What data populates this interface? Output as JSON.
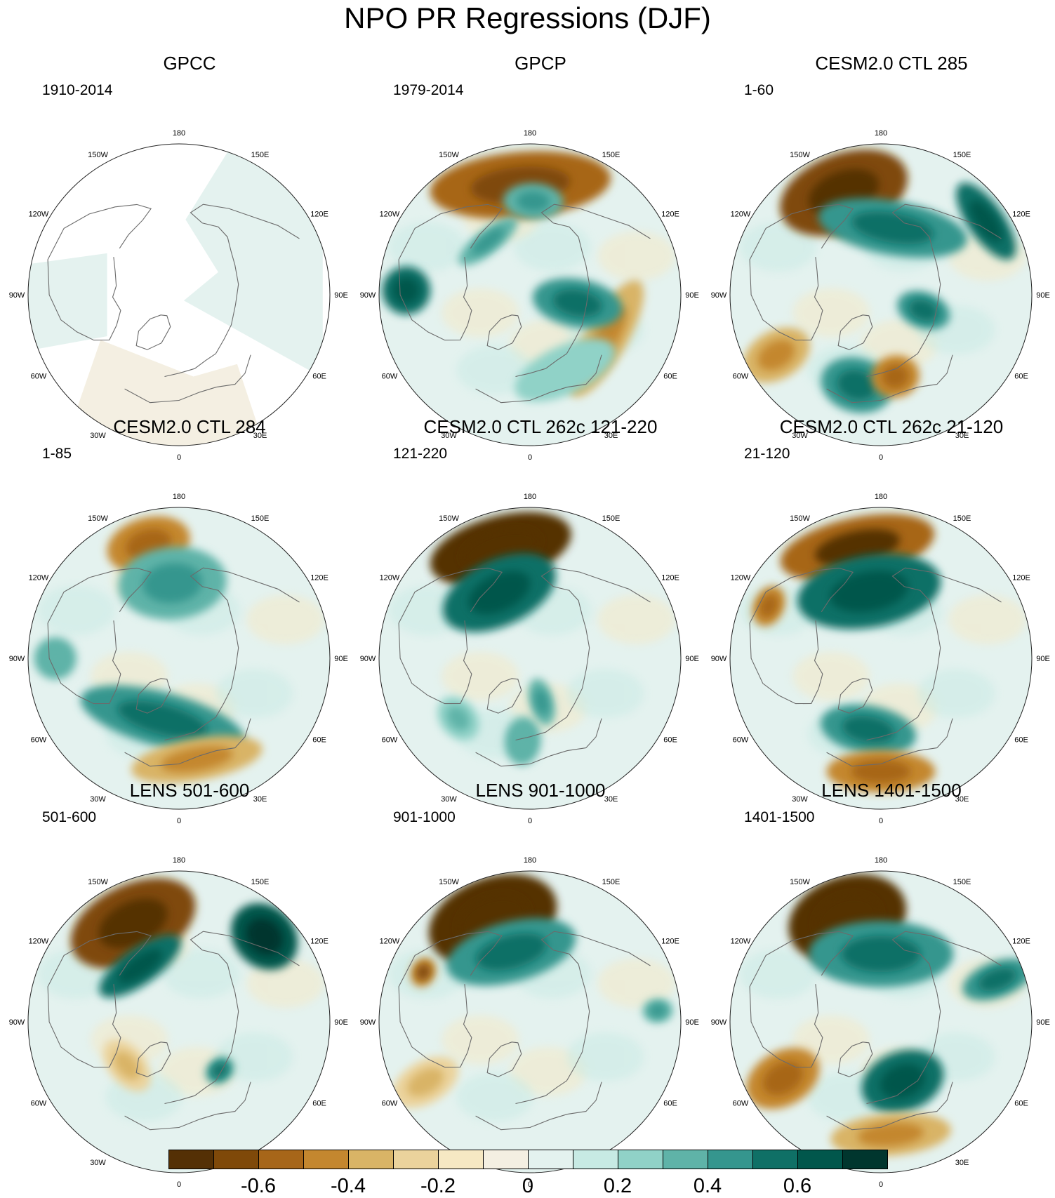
{
  "title": "NPO PR Regressions (DJF)",
  "lon_labels": [
    "180",
    "150E",
    "120E",
    "90E",
    "60E",
    "30E",
    "0",
    "30W",
    "60W",
    "90W",
    "120W",
    "150W"
  ],
  "panels": [
    {
      "title": "GPCC",
      "period": "1910-2014",
      "masked": true,
      "anomalies": []
    },
    {
      "title": "GPCP",
      "period": "1979-2014",
      "masked": false,
      "anomalies": [
        {
          "lon": 185,
          "r": 0.73,
          "rx": 0.3,
          "ry": 0.11,
          "level": -0.55
        },
        {
          "lon": 178,
          "r": 0.62,
          "rx": 0.1,
          "ry": 0.06,
          "level": 0.35
        },
        {
          "lon": 60,
          "r": 0.58,
          "rx": 0.22,
          "ry": 0.07,
          "level": -0.4
        },
        {
          "lon": 80,
          "r": 0.32,
          "rx": 0.08,
          "ry": 0.15,
          "level": 0.45
        },
        {
          "lon": 25,
          "r": 0.55,
          "rx": 0.18,
          "ry": 0.08,
          "level": 0.2
        },
        {
          "lon": 268,
          "r": 0.82,
          "rx": 0.08,
          "ry": 0.08,
          "level": 0.5
        },
        {
          "lon": 218,
          "r": 0.45,
          "rx": 0.12,
          "ry": 0.04,
          "level": 0.35
        }
      ]
    },
    {
      "title": "CESM2.0 CTL 285",
      "period": "1-60",
      "masked": false,
      "anomalies": [
        {
          "lon": 200,
          "r": 0.72,
          "rx": 0.22,
          "ry": 0.13,
          "level": -0.7
        },
        {
          "lon": 170,
          "r": 0.45,
          "rx": 0.25,
          "ry": 0.09,
          "level": 0.45
        },
        {
          "lon": 125,
          "r": 0.85,
          "rx": 0.15,
          "ry": 0.06,
          "level": 0.5
        },
        {
          "lon": 345,
          "r": 0.62,
          "rx": 0.12,
          "ry": 0.09,
          "level": 0.4
        },
        {
          "lon": 10,
          "r": 0.55,
          "rx": 0.08,
          "ry": 0.07,
          "level": -0.45
        },
        {
          "lon": 300,
          "r": 0.8,
          "rx": 0.08,
          "ry": 0.12,
          "level": -0.4
        },
        {
          "lon": 70,
          "r": 0.3,
          "rx": 0.06,
          "ry": 0.09,
          "level": 0.4
        }
      ]
    },
    {
      "title": "CESM2.0 CTL 284",
      "period": "1-85",
      "masked": false,
      "anomalies": [
        {
          "lon": 195,
          "r": 0.78,
          "rx": 0.14,
          "ry": 0.09,
          "level": -0.45
        },
        {
          "lon": 185,
          "r": 0.5,
          "rx": 0.18,
          "ry": 0.12,
          "level": 0.35
        },
        {
          "lon": 345,
          "r": 0.42,
          "rx": 0.28,
          "ry": 0.09,
          "level": 0.45
        },
        {
          "lon": 10,
          "r": 0.68,
          "rx": 0.22,
          "ry": 0.07,
          "level": -0.35
        },
        {
          "lon": 270,
          "r": 0.82,
          "rx": 0.07,
          "ry": 0.07,
          "level": 0.3
        }
      ]
    },
    {
      "title": "CESM2.0 CTL 262c 121-220",
      "period": "121-220",
      "masked": false,
      "anomalies": [
        {
          "lon": 195,
          "r": 0.75,
          "rx": 0.24,
          "ry": 0.11,
          "level": -0.75
        },
        {
          "lon": 205,
          "r": 0.48,
          "rx": 0.2,
          "ry": 0.11,
          "level": 0.5
        },
        {
          "lon": 355,
          "r": 0.55,
          "rx": 0.06,
          "ry": 0.08,
          "level": 0.3
        },
        {
          "lon": 15,
          "r": 0.3,
          "rx": 0.04,
          "ry": 0.08,
          "level": 0.35
        },
        {
          "lon": 310,
          "r": 0.62,
          "rx": 0.08,
          "ry": 0.06,
          "level": 0.25
        }
      ]
    },
    {
      "title": "CESM2.0 CTL 262c 21-120",
      "period": "21-120",
      "masked": false,
      "anomalies": [
        {
          "lon": 192,
          "r": 0.75,
          "rx": 0.26,
          "ry": 0.1,
          "level": -0.6
        },
        {
          "lon": 190,
          "r": 0.45,
          "rx": 0.24,
          "ry": 0.12,
          "level": 0.5
        },
        {
          "lon": 350,
          "r": 0.48,
          "rx": 0.16,
          "ry": 0.08,
          "level": 0.45
        },
        {
          "lon": 0,
          "r": 0.75,
          "rx": 0.18,
          "ry": 0.07,
          "level": -0.45
        },
        {
          "lon": 245,
          "r": 0.82,
          "rx": 0.07,
          "ry": 0.05,
          "level": -0.45
        }
      ]
    },
    {
      "title": "LENS 501-600",
      "period": "501-600",
      "masked": false,
      "anomalies": [
        {
          "lon": 205,
          "r": 0.72,
          "rx": 0.22,
          "ry": 0.13,
          "level": -0.7
        },
        {
          "lon": 135,
          "r": 0.8,
          "rx": 0.12,
          "ry": 0.1,
          "level": 0.6
        },
        {
          "lon": 215,
          "r": 0.45,
          "rx": 0.16,
          "ry": 0.06,
          "level": 0.5
        },
        {
          "lon": 310,
          "r": 0.45,
          "rx": 0.1,
          "ry": 0.06,
          "level": -0.3
        },
        {
          "lon": 40,
          "r": 0.42,
          "rx": 0.05,
          "ry": 0.04,
          "level": 0.45
        }
      ]
    },
    {
      "title": "LENS 901-1000",
      "period": "901-1000",
      "masked": false,
      "anomalies": [
        {
          "lon": 200,
          "r": 0.72,
          "rx": 0.22,
          "ry": 0.14,
          "level": -0.75
        },
        {
          "lon": 195,
          "r": 0.48,
          "rx": 0.22,
          "ry": 0.1,
          "level": 0.4
        },
        {
          "lon": 245,
          "r": 0.78,
          "rx": 0.05,
          "ry": 0.04,
          "level": -0.5
        },
        {
          "lon": 300,
          "r": 0.8,
          "rx": 0.07,
          "ry": 0.12,
          "level": -0.3
        },
        {
          "lon": 95,
          "r": 0.85,
          "rx": 0.04,
          "ry": 0.05,
          "level": 0.35
        }
      ]
    },
    {
      "title": "LENS 1401-1500",
      "period": "1401-1500",
      "masked": false,
      "anomalies": [
        {
          "lon": 198,
          "r": 0.72,
          "rx": 0.2,
          "ry": 0.14,
          "level": -0.75
        },
        {
          "lon": 180,
          "r": 0.45,
          "rx": 0.24,
          "ry": 0.11,
          "level": 0.45
        },
        {
          "lon": 20,
          "r": 0.42,
          "rx": 0.14,
          "ry": 0.1,
          "level": 0.5
        },
        {
          "lon": 5,
          "r": 0.75,
          "rx": 0.2,
          "ry": 0.07,
          "level": -0.4
        },
        {
          "lon": 300,
          "r": 0.75,
          "rx": 0.09,
          "ry": 0.13,
          "level": -0.45
        },
        {
          "lon": 110,
          "r": 0.82,
          "rx": 0.06,
          "ry": 0.12,
          "level": 0.4
        }
      ]
    }
  ],
  "colorbar": {
    "colors": [
      "#543005",
      "#7f4909",
      "#a76619",
      "#c4872f",
      "#d9b466",
      "#ebd39c",
      "#f6e8c3",
      "#f4efe2",
      "#e4f2ef",
      "#c7eae4",
      "#90d2c7",
      "#5fb3a8",
      "#35968e",
      "#0f7066",
      "#01574c",
      "#00362e"
    ],
    "tick_labels": [
      "-0.6",
      "-0.4",
      "-0.2",
      "0",
      "0.2",
      "0.4",
      "0.6"
    ],
    "levels": [
      -0.7,
      -0.6,
      -0.5,
      -0.4,
      -0.3,
      -0.2,
      -0.1,
      0,
      0.1,
      0.2,
      0.3,
      0.4,
      0.5,
      0.6,
      0.7
    ]
  }
}
